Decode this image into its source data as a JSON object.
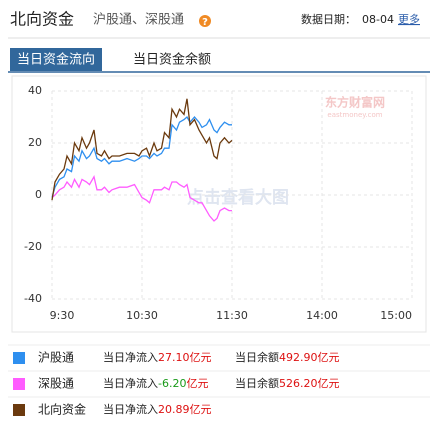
{
  "header": {
    "title": "北向资金",
    "subtitle": "沪股通、深股通",
    "help": "?",
    "date_label": "数据日期：",
    "date": "08-04",
    "more": "更多"
  },
  "tabs": {
    "items": [
      "当日资金流向",
      "当日资金余额"
    ],
    "active": 0
  },
  "chart_data": {
    "type": "line",
    "watermark": "东方财富网",
    "watermark_sub": "eastmoney.com",
    "overlay_text": "点击查看大图",
    "x": [
      0,
      2,
      5,
      8,
      10,
      13,
      15,
      18,
      20,
      23,
      25,
      28,
      30,
      33,
      35,
      38,
      40,
      45,
      50,
      55,
      58,
      60,
      63,
      65,
      68,
      70,
      73,
      75,
      78,
      80,
      83,
      85,
      88,
      90,
      92,
      95,
      98,
      100,
      103,
      105,
      108,
      110,
      112,
      115,
      118,
      120
    ],
    "xlim": [
      0,
      240
    ],
    "xticks": [
      {
        "value": 0,
        "label": "9:30"
      },
      {
        "value": 60,
        "label": "10:30"
      },
      {
        "value": 120,
        "label": "11:30"
      },
      {
        "value": 180,
        "label": "14:00"
      },
      {
        "value": 240,
        "label": "15:00"
      }
    ],
    "ylim": [
      -40,
      40
    ],
    "yticks": [
      40,
      20,
      0,
      -20,
      -40
    ],
    "grid": true,
    "series": [
      {
        "name": "沪股通",
        "color": "#2e8fef",
        "values": [
          -1,
          3,
          6,
          7,
          10,
          9,
          15,
          13,
          17,
          14,
          15,
          18,
          14,
          13,
          14,
          12,
          13,
          13,
          14,
          13,
          14,
          15,
          15,
          14,
          16,
          15,
          16,
          18,
          18,
          27,
          25,
          28,
          29,
          30,
          28,
          30,
          28,
          26,
          27,
          29,
          25,
          24,
          26,
          28,
          27,
          27
        ]
      },
      {
        "name": "深股通",
        "color": "#ff5cff",
        "values": [
          -1,
          0,
          2,
          3,
          5,
          3,
          6,
          3,
          6,
          5,
          4,
          7,
          2,
          2,
          3,
          1,
          2,
          3,
          3,
          4,
          1,
          -1,
          -2,
          -3,
          2,
          2,
          2,
          3,
          2,
          5,
          5,
          4,
          3,
          4,
          -1,
          -2,
          -3,
          -3,
          -6,
          -8,
          -10,
          -9,
          -6,
          -5,
          -6,
          -6
        ]
      },
      {
        "name": "北向资金",
        "color": "#6b3a0e",
        "values": [
          -2,
          5,
          8,
          10,
          15,
          12,
          20,
          17,
          22,
          18,
          20,
          25,
          16,
          15,
          17,
          14,
          15,
          15,
          16,
          16,
          15,
          17,
          18,
          15,
          20,
          17,
          18,
          24,
          22,
          33,
          30,
          33,
          31,
          37,
          27,
          29,
          25,
          23,
          20,
          22,
          15,
          14,
          20,
          22,
          20,
          21
        ]
      }
    ]
  },
  "summary": {
    "net_label": "当日净流入",
    "balance_label": "当日余额",
    "unit": "亿元",
    "rows": [
      {
        "net": "27.10",
        "balance": "492.90"
      },
      {
        "net": "-6.20",
        "balance": "526.20"
      },
      {
        "net": "20.89"
      }
    ]
  }
}
